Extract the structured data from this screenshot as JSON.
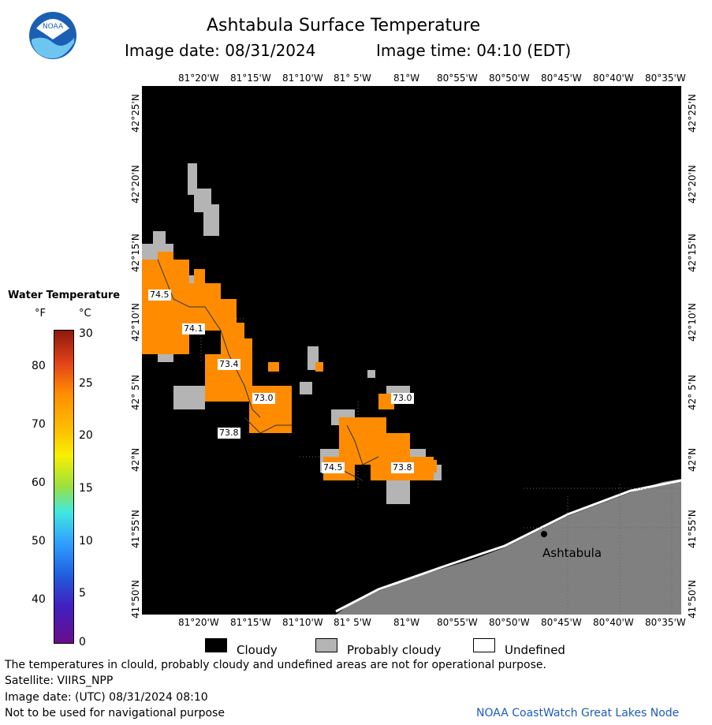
{
  "header": {
    "title": "Ashtabula Surface Temperature",
    "image_date": "Image date: 08/31/2024",
    "image_time": "Image time: 04:10 (EDT)",
    "logo_text": "NOAA"
  },
  "map": {
    "top_lon_ticks": [
      "81°20'W",
      "81°15'W",
      "81°10'W",
      "81° 5'W",
      "81°W",
      "80°55'W",
      "80°50'W",
      "80°45'W",
      "80°40'W",
      "80°35'W"
    ],
    "bottom_lon_ticks": [
      "81°20'W",
      "81°15'W",
      "81°10'W",
      "81° 5'W",
      "81°W",
      "80°55'W",
      "80°50'W",
      "80°45'W",
      "80°40'W",
      "80°35'W"
    ],
    "left_lat_ticks": [
      "42°25'N",
      "42°20'N",
      "42°15'N",
      "42°10'N",
      "42° 5'N",
      "42°N",
      "41°55'N",
      "41°50'N"
    ],
    "right_lat_ticks": [
      "42°25'N",
      "42°20'N",
      "42°15'N",
      "42°10'N",
      "42° 5'N",
      "42°N",
      "41°55'N",
      "41°50'N"
    ],
    "city_label": "Ashtabula",
    "temperature_labels": [
      "74.5",
      "74.1",
      "73.4",
      "73.0",
      "73.8",
      "73.0",
      "74.5",
      "73.8"
    ]
  },
  "colorbar": {
    "title": "Water Temperature",
    "unit_f": "°F",
    "unit_c": "°C",
    "f_ticks": [
      "80",
      "70",
      "60",
      "50",
      "40"
    ],
    "c_ticks": [
      "30",
      "25",
      "20",
      "15",
      "10",
      "5",
      "0"
    ]
  },
  "legend": {
    "cloudy": "Cloudy",
    "probably_cloudy": "Probably cloudy",
    "undefined": "Undefined",
    "colors": {
      "cloudy": "#000000",
      "probably_cloudy": "#b4b4b4",
      "undefined": "#ffffff"
    }
  },
  "footer": {
    "note": "The temperatures in clould, probably cloudy and undefined areas are not for operational purpose.",
    "satellite": "Satellite: VIIRS_NPP",
    "utc_date": "Image date: (UTC) 08/31/2024  08:10",
    "navigation": "Not to be used for navigational purpose",
    "credit": "NOAA CoastWatch Great Lakes Node"
  },
  "colors": {
    "water_warm": "#ff8c00",
    "land": "#808080",
    "cloud": "#000000",
    "probable_cloud": "#b4b4b4",
    "credit_blue": "#1e5bb8"
  }
}
